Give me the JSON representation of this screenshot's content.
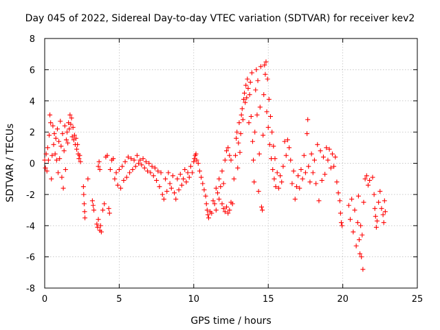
{
  "chart_data": {
    "type": "scatter",
    "title": "Day 045 of 2022, Sidereal Day-to-day VTEC variation (SDTVAR) for receiver kev2",
    "xlabel": "GPS time / hours",
    "ylabel": "SDTVAR / TECUs",
    "xlim": [
      0,
      25
    ],
    "ylim": [
      -8,
      8
    ],
    "xticks": [
      0,
      5,
      10,
      15,
      20,
      25
    ],
    "yticks": [
      -8,
      -6,
      -4,
      -2,
      0,
      2,
      4,
      6,
      8
    ],
    "grid": true,
    "marker": "plus",
    "color": "#ff0000",
    "series": [
      {
        "name": "SDTVAR",
        "points": [
          [
            0.0,
            0.2
          ],
          [
            0.05,
            -0.3
          ],
          [
            0.1,
            0.6
          ],
          [
            0.15,
            -0.5
          ],
          [
            0.2,
            1.0
          ],
          [
            0.25,
            0.2
          ],
          [
            0.3,
            1.8
          ],
          [
            0.35,
            3.1
          ],
          [
            0.4,
            2.6
          ],
          [
            0.45,
            -1.0
          ],
          [
            0.5,
            0.5
          ],
          [
            0.55,
            2.4
          ],
          [
            0.6,
            1.2
          ],
          [
            0.65,
            1.9
          ],
          [
            0.7,
            0.6
          ],
          [
            0.75,
            1.6
          ],
          [
            0.8,
            0.2
          ],
          [
            0.85,
            2.2
          ],
          [
            0.9,
            -0.6
          ],
          [
            0.95,
            1.4
          ],
          [
            1.0,
            0.3
          ],
          [
            1.05,
            2.7
          ],
          [
            1.1,
            1.1
          ],
          [
            1.15,
            -0.9
          ],
          [
            1.2,
            1.9
          ],
          [
            1.25,
            -1.6
          ],
          [
            1.3,
            0.8
          ],
          [
            1.35,
            2.4
          ],
          [
            1.4,
            -0.4
          ],
          [
            1.45,
            1.5
          ],
          [
            1.5,
            2.0
          ],
          [
            1.55,
            1.3
          ],
          [
            1.6,
            2.6
          ],
          [
            1.65,
            2.2
          ],
          [
            1.7,
            3.1
          ],
          [
            1.75,
            2.5
          ],
          [
            1.8,
            2.9
          ],
          [
            1.85,
            1.7
          ],
          [
            1.9,
            2.3
          ],
          [
            1.95,
            1.5
          ],
          [
            2.0,
            1.8
          ],
          [
            2.05,
            1.2
          ],
          [
            2.1,
            1.6
          ],
          [
            2.15,
            0.9
          ],
          [
            2.2,
            1.2
          ],
          [
            2.25,
            0.6
          ],
          [
            2.3,
            0.3
          ],
          [
            2.35,
            0.5
          ],
          [
            2.4,
            0.1
          ],
          [
            2.6,
            -1.5
          ],
          [
            2.62,
            -2.0
          ],
          [
            2.65,
            -2.6
          ],
          [
            2.68,
            -3.1
          ],
          [
            2.7,
            -3.5
          ],
          [
            2.9,
            -1.0
          ],
          [
            3.2,
            -2.4
          ],
          [
            3.25,
            -2.7
          ],
          [
            3.3,
            -3.0
          ],
          [
            3.5,
            -3.9
          ],
          [
            3.55,
            -4.1
          ],
          [
            3.6,
            -3.6
          ],
          [
            3.7,
            -4.3
          ],
          [
            3.75,
            -4.0
          ],
          [
            3.8,
            -4.4
          ],
          [
            3.6,
            -0.2
          ],
          [
            3.65,
            0.1
          ],
          [
            3.7,
            -0.4
          ],
          [
            3.9,
            -3.0
          ],
          [
            4.0,
            -2.6
          ],
          [
            4.1,
            0.4
          ],
          [
            4.2,
            0.5
          ],
          [
            4.3,
            -2.9
          ],
          [
            4.35,
            -3.2
          ],
          [
            4.4,
            -0.4
          ],
          [
            4.5,
            0.2
          ],
          [
            4.6,
            0.3
          ],
          [
            4.7,
            -1.0
          ],
          [
            4.8,
            -0.6
          ],
          [
            4.9,
            -1.4
          ],
          [
            5.0,
            -0.4
          ],
          [
            5.1,
            -1.6
          ],
          [
            5.2,
            -0.2
          ],
          [
            5.3,
            -1.1
          ],
          [
            5.4,
            0.1
          ],
          [
            5.5,
            -0.9
          ],
          [
            5.6,
            0.4
          ],
          [
            5.7,
            -0.6
          ],
          [
            5.8,
            0.3
          ],
          [
            5.9,
            -0.4
          ],
          [
            6.0,
            0.2
          ],
          [
            6.1,
            -0.2
          ],
          [
            6.2,
            0.5
          ],
          [
            6.3,
            0.0
          ],
          [
            6.4,
            0.2
          ],
          [
            6.5,
            -0.1
          ],
          [
            6.6,
            0.3
          ],
          [
            6.7,
            -0.3
          ],
          [
            6.8,
            0.1
          ],
          [
            6.9,
            -0.5
          ],
          [
            7.0,
            0.0
          ],
          [
            7.1,
            -0.6
          ],
          [
            7.2,
            -0.2
          ],
          [
            7.3,
            -0.8
          ],
          [
            7.4,
            -0.3
          ],
          [
            7.5,
            -1.1
          ],
          [
            7.6,
            -0.5
          ],
          [
            7.7,
            -1.5
          ],
          [
            7.8,
            -0.6
          ],
          [
            7.9,
            -2.0
          ],
          [
            8.0,
            -2.3
          ],
          [
            8.1,
            -1.0
          ],
          [
            8.2,
            -1.8
          ],
          [
            8.3,
            -0.6
          ],
          [
            8.4,
            -1.3
          ],
          [
            8.5,
            -1.6
          ],
          [
            8.6,
            -0.8
          ],
          [
            8.7,
            -1.9
          ],
          [
            8.8,
            -2.3
          ],
          [
            8.9,
            -1.0
          ],
          [
            9.0,
            -1.7
          ],
          [
            9.1,
            -0.7
          ],
          [
            9.2,
            -1.4
          ],
          [
            9.3,
            -1.0
          ],
          [
            9.4,
            -0.4
          ],
          [
            9.5,
            -1.2
          ],
          [
            9.6,
            -0.6
          ],
          [
            9.7,
            -0.9
          ],
          [
            9.8,
            -0.2
          ],
          [
            9.9,
            -0.6
          ],
          [
            10.0,
            0.1
          ],
          [
            10.05,
            0.3
          ],
          [
            10.1,
            0.5
          ],
          [
            10.15,
            0.6
          ],
          [
            10.2,
            0.2
          ],
          [
            10.3,
            0.0
          ],
          [
            10.4,
            -0.5
          ],
          [
            10.5,
            -0.9
          ],
          [
            10.6,
            -1.3
          ],
          [
            10.7,
            -1.7
          ],
          [
            10.8,
            -2.1
          ],
          [
            10.85,
            -2.6
          ],
          [
            10.9,
            -3.0
          ],
          [
            10.95,
            -3.3
          ],
          [
            11.0,
            -3.5
          ],
          [
            11.1,
            -3.1
          ],
          [
            11.2,
            -3.2
          ],
          [
            11.3,
            -2.4
          ],
          [
            11.4,
            -2.6
          ],
          [
            11.5,
            -1.6
          ],
          [
            11.6,
            -1.9
          ],
          [
            11.7,
            -1.0
          ],
          [
            11.8,
            -1.5
          ],
          [
            11.9,
            -0.5
          ],
          [
            12.0,
            -1.3
          ],
          [
            12.1,
            0.2
          ],
          [
            12.2,
            0.8
          ],
          [
            12.3,
            1.0
          ],
          [
            12.4,
            0.5
          ],
          [
            12.5,
            0.2
          ],
          [
            11.9,
            -2.6
          ],
          [
            12.0,
            -2.9
          ],
          [
            12.1,
            -3.1
          ],
          [
            12.2,
            -2.8
          ],
          [
            12.3,
            -3.2
          ],
          [
            12.4,
            -3.0
          ],
          [
            12.5,
            -2.5
          ],
          [
            11.5,
            -3.0
          ],
          [
            11.7,
            -2.3
          ],
          [
            12.6,
            -2.6
          ],
          [
            12.7,
            -1.0
          ],
          [
            12.8,
            0.5
          ],
          [
            12.85,
            1.6
          ],
          [
            12.9,
            2.0
          ],
          [
            12.95,
            -0.3
          ],
          [
            13.0,
            1.3
          ],
          [
            13.05,
            2.6
          ],
          [
            13.1,
            0.7
          ],
          [
            13.15,
            1.9
          ],
          [
            13.2,
            3.1
          ],
          [
            13.25,
            3.5
          ],
          [
            13.3,
            2.8
          ],
          [
            13.35,
            4.1
          ],
          [
            13.4,
            4.5
          ],
          [
            13.45,
            3.9
          ],
          [
            13.5,
            5.0
          ],
          [
            13.55,
            4.2
          ],
          [
            13.6,
            5.4
          ],
          [
            13.65,
            4.8
          ],
          [
            13.7,
            2.6
          ],
          [
            13.75,
            4.4
          ],
          [
            13.8,
            5.2
          ],
          [
            13.85,
            3.0
          ],
          [
            13.9,
            5.8
          ],
          [
            13.95,
            1.4
          ],
          [
            14.0,
            0.2
          ],
          [
            14.05,
            -1.2
          ],
          [
            14.1,
            2.0
          ],
          [
            14.15,
            4.7
          ],
          [
            14.2,
            6.0
          ],
          [
            14.25,
            3.1
          ],
          [
            14.3,
            5.3
          ],
          [
            14.35,
            -1.8
          ],
          [
            14.4,
            0.6
          ],
          [
            14.45,
            3.6
          ],
          [
            14.5,
            6.2
          ],
          [
            14.55,
            -2.8
          ],
          [
            14.6,
            -3.0
          ],
          [
            14.65,
            1.8
          ],
          [
            14.7,
            4.4
          ],
          [
            14.75,
            6.3
          ],
          [
            14.8,
            5.7
          ],
          [
            14.85,
            6.5
          ],
          [
            14.9,
            3.3
          ],
          [
            14.95,
            5.4
          ],
          [
            15.0,
            2.3
          ],
          [
            15.05,
            4.1
          ],
          [
            15.1,
            1.2
          ],
          [
            15.15,
            3.0
          ],
          [
            15.2,
            0.3
          ],
          [
            15.25,
            2.0
          ],
          [
            15.3,
            -0.4
          ],
          [
            15.35,
            1.1
          ],
          [
            15.4,
            -1.0
          ],
          [
            15.45,
            0.3
          ],
          [
            15.5,
            -1.5
          ],
          [
            15.6,
            -0.6
          ],
          [
            15.7,
            -1.6
          ],
          [
            15.8,
            -0.8
          ],
          [
            15.9,
            -1.2
          ],
          [
            16.0,
            -0.2
          ],
          [
            16.1,
            1.4
          ],
          [
            16.2,
            0.5
          ],
          [
            16.3,
            1.5
          ],
          [
            16.4,
            1.0
          ],
          [
            16.5,
            0.2
          ],
          [
            16.6,
            -1.3
          ],
          [
            16.7,
            -0.5
          ],
          [
            16.8,
            -2.3
          ],
          [
            16.9,
            -1.5
          ],
          [
            17.0,
            -0.8
          ],
          [
            17.1,
            -1.6
          ],
          [
            17.2,
            -0.4
          ],
          [
            17.3,
            -1.0
          ],
          [
            17.4,
            0.5
          ],
          [
            17.5,
            -0.6
          ],
          [
            17.6,
            1.9
          ],
          [
            17.65,
            2.8
          ],
          [
            17.7,
            -0.2
          ],
          [
            17.8,
            -1.2
          ],
          [
            17.9,
            0.6
          ],
          [
            18.0,
            -0.6
          ],
          [
            18.1,
            0.2
          ],
          [
            18.2,
            -1.3
          ],
          [
            18.3,
            1.2
          ],
          [
            18.4,
            -2.4
          ],
          [
            18.5,
            0.8
          ],
          [
            18.6,
            -1.1
          ],
          [
            18.7,
            0.4
          ],
          [
            18.8,
            -0.7
          ],
          [
            18.9,
            1.0
          ],
          [
            19.0,
            0.2
          ],
          [
            19.1,
            0.9
          ],
          [
            19.2,
            -0.3
          ],
          [
            19.3,
            0.6
          ],
          [
            19.4,
            -0.2
          ],
          [
            19.5,
            0.4
          ],
          [
            19.6,
            -1.2
          ],
          [
            19.7,
            -1.9
          ],
          [
            19.8,
            -2.4
          ],
          [
            19.85,
            -3.2
          ],
          [
            19.9,
            -3.8
          ],
          [
            19.95,
            -4.0
          ],
          [
            20.4,
            -2.7
          ],
          [
            20.5,
            -3.6
          ],
          [
            20.6,
            -2.3
          ],
          [
            20.7,
            -4.4
          ],
          [
            20.8,
            -3.0
          ],
          [
            20.9,
            -5.3
          ],
          [
            21.0,
            -3.8
          ],
          [
            21.05,
            -2.1
          ],
          [
            21.1,
            -4.9
          ],
          [
            21.15,
            -5.8
          ],
          [
            21.2,
            -4.0
          ],
          [
            21.25,
            -6.0
          ],
          [
            21.3,
            -4.6
          ],
          [
            21.35,
            -6.8
          ],
          [
            21.4,
            -2.5
          ],
          [
            21.5,
            -1.0
          ],
          [
            21.6,
            -0.8
          ],
          [
            21.7,
            -1.4
          ],
          [
            21.8,
            -1.1
          ],
          [
            22.0,
            -0.9
          ],
          [
            22.1,
            -2.0
          ],
          [
            22.15,
            -2.9
          ],
          [
            22.2,
            -3.4
          ],
          [
            22.25,
            -4.1
          ],
          [
            22.3,
            -3.7
          ],
          [
            22.4,
            -2.5
          ],
          [
            22.5,
            -1.8
          ],
          [
            22.6,
            -2.9
          ],
          [
            22.7,
            -3.3
          ],
          [
            22.75,
            -3.8
          ],
          [
            22.8,
            -2.4
          ],
          [
            22.85,
            -3.1
          ]
        ]
      }
    ]
  }
}
